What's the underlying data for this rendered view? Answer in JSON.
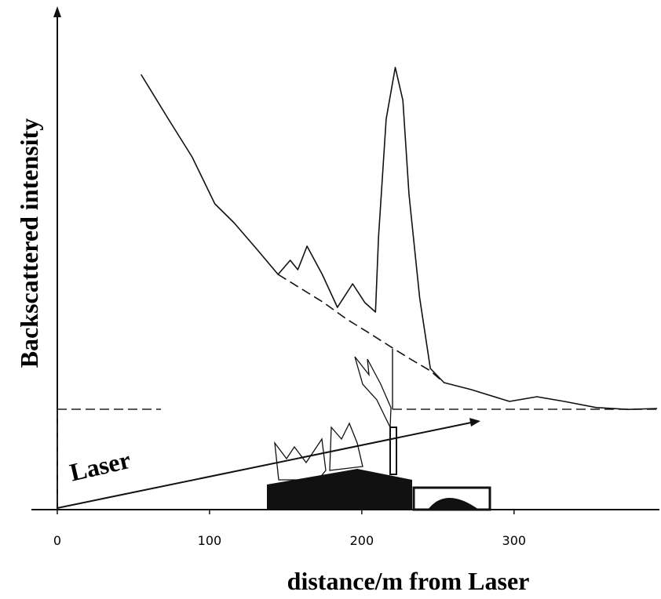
{
  "chart_data": {
    "type": "line",
    "x_label": "distance/m from Laser",
    "y_label": "Backscattered intensity",
    "annotation": "Laser",
    "xlim": [
      0,
      396
    ],
    "xticks": [
      0,
      100,
      200,
      300
    ],
    "ylim": [
      0,
      108
    ],
    "series": [
      {
        "color": "#111111",
        "style": "solid",
        "x": [
          55,
          73,
          88.5,
          103.5,
          116,
          132,
          145,
          153,
          158,
          164,
          174,
          184,
          194,
          202,
          209,
          211,
          216,
          222,
          227,
          231,
          238,
          245,
          254,
          272,
          297,
          315,
          333,
          354,
          375,
          394
        ],
        "values": [
          92.5,
          83,
          75,
          65,
          61,
          55,
          50,
          53,
          51,
          56,
          50,
          43,
          48,
          44,
          42,
          58,
          83,
          94,
          87,
          67,
          45,
          30,
          27,
          25.5,
          23,
          24,
          23,
          21.7,
          21.3,
          21.5
        ]
      },
      {
        "color": "#111111",
        "style": "dashed",
        "x": [
          145,
          160,
          175,
          190,
          205,
          222,
          232,
          245,
          254
        ],
        "values": [
          50,
          47,
          44,
          40.5,
          37.5,
          34,
          32,
          29.5,
          27
        ]
      }
    ]
  }
}
